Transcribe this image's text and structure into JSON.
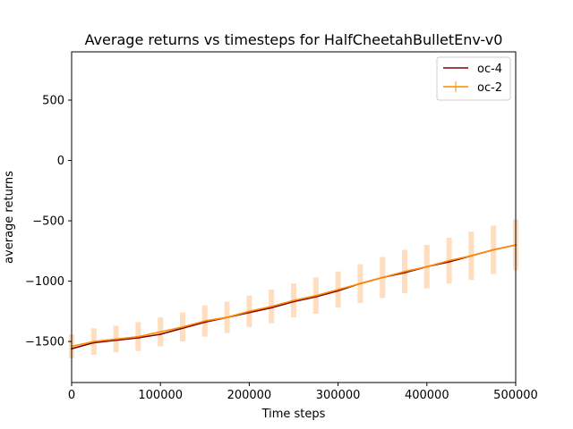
{
  "chart_data": {
    "type": "line",
    "title": "Average returns vs timesteps for HalfCheetahBulletEnv-v0",
    "xlabel": "Time steps",
    "ylabel": "average returns",
    "xlim": [
      0,
      500000
    ],
    "ylim": [
      -1840,
      900
    ],
    "xticks": [
      0,
      100000,
      200000,
      300000,
      400000,
      500000
    ],
    "xtick_labels": [
      "0",
      "100000",
      "200000",
      "300000",
      "400000",
      "500000"
    ],
    "yticks": [
      -1500,
      -1000,
      -500,
      0,
      500
    ],
    "ytick_labels": [
      "−1500",
      "−1000",
      "−500",
      "0",
      "500"
    ],
    "grid": false,
    "legend_position": "top-right",
    "series": [
      {
        "name": "oc-4",
        "color": "#800000",
        "has_errorbars": false,
        "x": [
          0,
          25000,
          50000,
          75000,
          100000,
          125000,
          150000,
          175000,
          200000,
          225000,
          250000,
          275000,
          300000,
          325000,
          350000,
          375000,
          400000,
          425000,
          450000,
          475000,
          500000
        ],
        "y": [
          -1560,
          -1510,
          -1490,
          -1470,
          -1440,
          -1390,
          -1340,
          -1300,
          -1260,
          -1220,
          -1170,
          -1130,
          -1080,
          -1020,
          -970,
          -930,
          -880,
          -840,
          -790,
          -740,
          -700
        ]
      },
      {
        "name": "oc-2",
        "color": "#ff8c00",
        "has_errorbars": true,
        "errorbar_color": "#ffdab9",
        "x": [
          0,
          25000,
          50000,
          75000,
          100000,
          125000,
          150000,
          175000,
          200000,
          225000,
          250000,
          275000,
          300000,
          325000,
          350000,
          375000,
          400000,
          425000,
          450000,
          475000,
          500000
        ],
        "y": [
          -1540,
          -1500,
          -1480,
          -1460,
          -1420,
          -1380,
          -1330,
          -1300,
          -1250,
          -1210,
          -1160,
          -1120,
          -1070,
          -1020,
          -970,
          -920,
          -880,
          -830,
          -790,
          -740,
          -700
        ],
        "err": [
          100,
          110,
          110,
          120,
          120,
          120,
          130,
          130,
          130,
          140,
          140,
          150,
          150,
          160,
          170,
          180,
          180,
          190,
          200,
          200,
          210
        ]
      }
    ]
  }
}
